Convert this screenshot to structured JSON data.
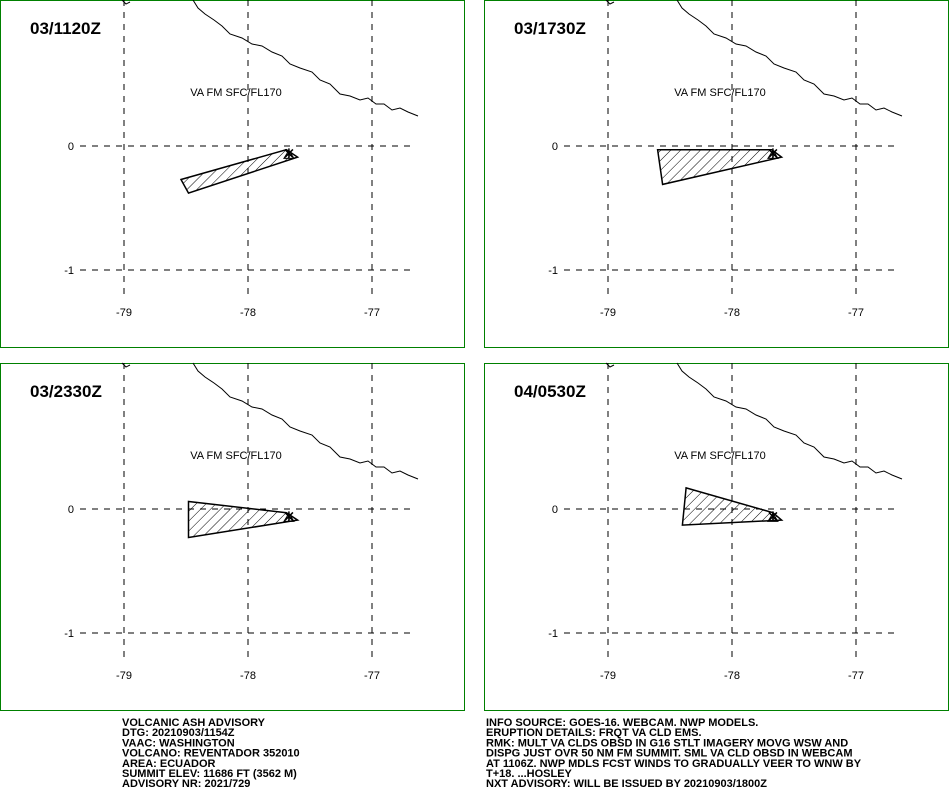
{
  "panels": [
    {
      "time": "03/1120Z",
      "level": "VA FM SFC/FL170",
      "polygon": [
        [
          -78.54,
          -0.27
        ],
        [
          -78.48,
          -0.38
        ],
        [
          -77.6,
          -0.09
        ],
        [
          -77.69,
          -0.03
        ]
      ]
    },
    {
      "time": "03/1730Z",
      "level": "VA FM SFC/FL170",
      "polygon": [
        [
          -78.6,
          -0.03
        ],
        [
          -78.56,
          -0.31
        ],
        [
          -77.6,
          -0.09
        ],
        [
          -77.68,
          -0.03
        ]
      ]
    },
    {
      "time": "03/2330Z",
      "level": "VA FM SFC/FL170",
      "polygon": [
        [
          -78.48,
          0.06
        ],
        [
          -78.48,
          -0.23
        ],
        [
          -77.6,
          -0.09
        ],
        [
          -77.69,
          -0.03
        ]
      ]
    },
    {
      "time": "04/0530Z",
      "level": "VA FM SFC/FL170",
      "polygon": [
        [
          -78.37,
          0.17
        ],
        [
          -78.4,
          -0.13
        ],
        [
          -77.6,
          -0.09
        ],
        [
          -77.67,
          -0.03
        ]
      ]
    }
  ],
  "map": {
    "xlim": [
      -80,
      -76.25
    ],
    "ylim": [
      -1.629,
      1.177
    ],
    "xticks": [
      -79,
      -78,
      -77
    ],
    "yticks": [
      0,
      -1
    ]
  },
  "vent": [
    -77.67,
    -0.06
  ],
  "advisory": {
    "left": [
      "VOLCANIC ASH ADVISORY",
      "DTG: 20210903/1154Z",
      "VAAC: WASHINGTON",
      "VOLCANO: REVENTADOR 352010",
      "AREA: ECUADOR",
      "SUMMIT ELEV: 11686 FT (3562 M)",
      "ADVISORY NR: 2021/729"
    ],
    "right": [
      "INFO SOURCE: GOES-16. WEBCAM. NWP MODELS.",
      "ERUPTION DETAILS: FRQT VA CLD EMS.",
      "RMK: MULT VA CLDS OBSD IN G16 STLT IMAGERY MOVG WSW AND",
      "DISPG JUST OVR 50 NM FM SUMMIT. SML VA CLD OBSD IN WEBCAM",
      "AT 1106Z. NWP MDLS FCST WINDS TO GRADUALLY VEER TO WNW BY",
      "T+18. ...HOSLEY",
      "NXT ADVISORY: WILL BE ISSUED BY 20210903/1800Z"
    ]
  }
}
